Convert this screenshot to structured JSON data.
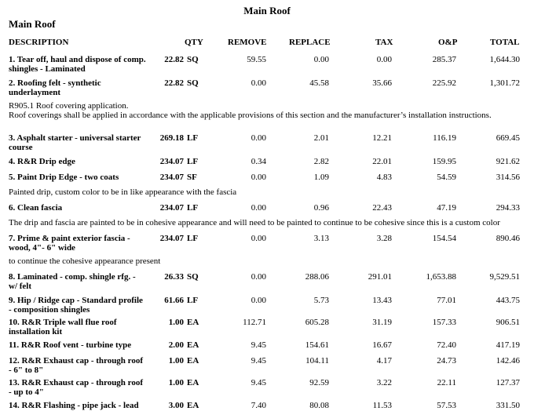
{
  "page_title": "Main Roof",
  "section_title": "Main Roof",
  "headers": {
    "description": "DESCRIPTION",
    "qty": "QTY",
    "remove": "REMOVE",
    "replace": "REPLACE",
    "tax": "TAX",
    "op": "O&P",
    "total": "TOTAL"
  },
  "rows": [
    {
      "desc": "1.  Tear off, haul and dispose of comp. shingles - Laminated",
      "qty": "22.82",
      "unit": "SQ",
      "remove": "59.55",
      "replace": "0.00",
      "tax": "0.00",
      "op": "285.37",
      "total": "1,644.30"
    },
    {
      "desc": "2.  Roofing felt - synthetic underlayment",
      "qty": "22.82",
      "unit": "SQ",
      "remove": "0.00",
      "replace": "45.58",
      "tax": "35.66",
      "op": "225.92",
      "total": "1,301.72"
    },
    {
      "desc": "3.  Asphalt starter - universal starter course",
      "qty": "269.18",
      "unit": "LF",
      "remove": "0.00",
      "replace": "2.01",
      "tax": "12.21",
      "op": "116.19",
      "total": "669.45"
    },
    {
      "desc": "4.  R&R Drip edge",
      "qty": "234.07",
      "unit": "LF",
      "remove": "0.34",
      "replace": "2.82",
      "tax": "22.01",
      "op": "159.95",
      "total": "921.62"
    },
    {
      "desc": "5.  Paint Drip Edge - two coats",
      "qty": "234.07",
      "unit": "SF",
      "remove": "0.00",
      "replace": "1.09",
      "tax": "4.83",
      "op": "54.59",
      "total": "314.56"
    },
    {
      "desc": "6.  Clean fascia",
      "qty": "234.07",
      "unit": "LF",
      "remove": "0.00",
      "replace": "0.96",
      "tax": "22.43",
      "op": "47.19",
      "total": "294.33"
    },
    {
      "desc": "7.  Prime & paint exterior fascia - wood, 4\"- 6\" wide",
      "qty": "234.07",
      "unit": "LF",
      "remove": "0.00",
      "replace": "3.13",
      "tax": "3.28",
      "op": "154.54",
      "total": "890.46"
    },
    {
      "desc": "8.  Laminated - comp. shingle rfg. - w/ felt",
      "qty": "26.33",
      "unit": "SQ",
      "remove": "0.00",
      "replace": "288.06",
      "tax": "291.01",
      "op": "1,653.88",
      "total": "9,529.51"
    },
    {
      "desc": "9.  Hip / Ridge cap - Standard profile - composition shingles",
      "qty": "61.66",
      "unit": "LF",
      "remove": "0.00",
      "replace": "5.73",
      "tax": "13.43",
      "op": "77.01",
      "total": "443.75"
    },
    {
      "desc": "10.  R&R Triple wall flue roof installation kit",
      "qty": "1.00",
      "unit": "EA",
      "remove": "112.71",
      "replace": "605.28",
      "tax": "31.19",
      "op": "157.33",
      "total": "906.51"
    },
    {
      "desc": "11.  R&R Roof vent - turbine type",
      "qty": "2.00",
      "unit": "EA",
      "remove": "9.45",
      "replace": "154.61",
      "tax": "16.67",
      "op": "72.40",
      "total": "417.19"
    },
    {
      "desc": "12.  R&R Exhaust cap - through roof - 6\" to 8\"",
      "qty": "1.00",
      "unit": "EA",
      "remove": "9.45",
      "replace": "104.11",
      "tax": "4.17",
      "op": "24.73",
      "total": "142.46"
    },
    {
      "desc": "13.  R&R Exhaust cap - through roof - up to 4\"",
      "qty": "1.00",
      "unit": "EA",
      "remove": "9.45",
      "replace": "92.59",
      "tax": "3.22",
      "op": "22.11",
      "total": "127.37"
    },
    {
      "desc": "14.  R&R Flashing - pipe jack - lead",
      "qty": "3.00",
      "unit": "EA",
      "remove": "7.40",
      "replace": "80.08",
      "tax": "11.53",
      "op": "57.53",
      "total": "331.50"
    }
  ],
  "notes": {
    "after_2": "R905.1 Roof covering application.\nRoof coverings shall be applied in accordance with the applicable provisions of this section and the manufacturer’s installation instructions.",
    "after_5": "Painted drip, custom color to be in like appearance with the fascia",
    "after_6": "The drip and fascia are painted to be in cohesive appearance and will need to be painted to continue to be cohesive since this is a custom color",
    "after_7": "to continue the cohesive appearance present"
  }
}
